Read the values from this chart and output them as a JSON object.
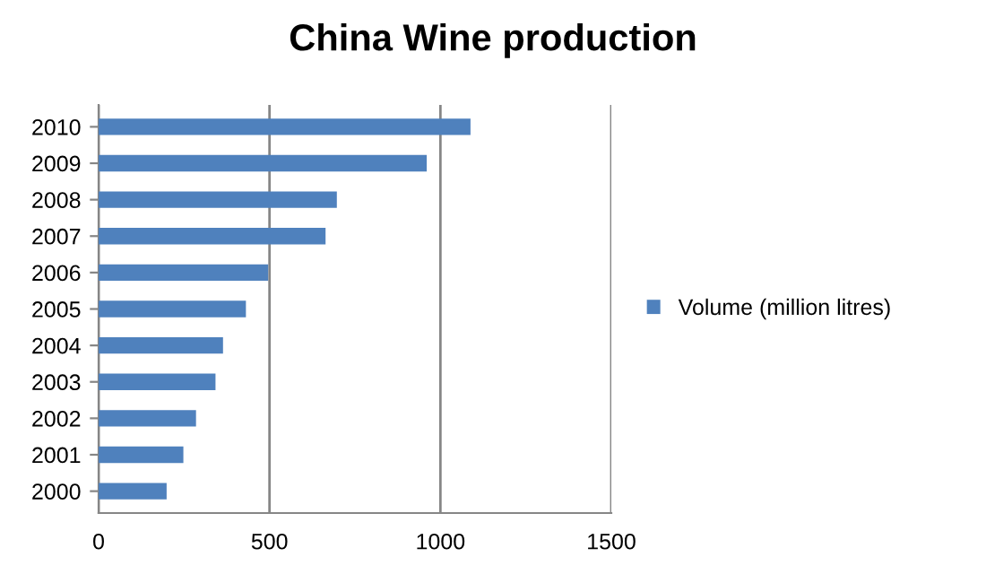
{
  "chart_data": {
    "type": "bar",
    "title": "China Wine production",
    "orientation": "horizontal",
    "categories": [
      "2010",
      "2009",
      "2008",
      "2007",
      "2006",
      "2005",
      "2004",
      "2003",
      "2002",
      "2001",
      "2000"
    ],
    "series": [
      {
        "name": "Volume (million litres)",
        "color": "#4f81bd",
        "values": [
          1088,
          960,
          697,
          664,
          496,
          431,
          364,
          342,
          285,
          248,
          199
        ]
      }
    ],
    "xlim": [
      0,
      1500
    ],
    "xticks": [
      0,
      500,
      1000,
      1500
    ],
    "grid": "x",
    "legend": "right"
  }
}
